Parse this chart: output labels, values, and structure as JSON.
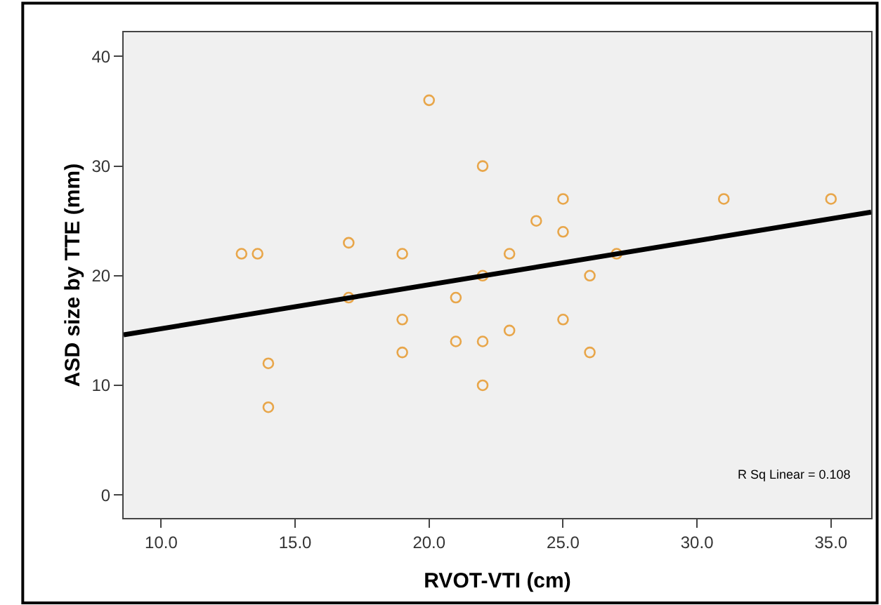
{
  "chart_data": {
    "type": "scatter",
    "xlabel": "RVOT-VTI (cm)",
    "ylabel": "ASD size by TTE (mm)",
    "xlim": [
      8.6,
      36.5
    ],
    "ylim": [
      -2.1,
      42.2
    ],
    "xticks": [
      {
        "value": 10,
        "label": "10.0"
      },
      {
        "value": 15,
        "label": "15.0"
      },
      {
        "value": 20,
        "label": "20.0"
      },
      {
        "value": 25,
        "label": "25.0"
      },
      {
        "value": 30,
        "label": "30.0"
      },
      {
        "value": 35,
        "label": "35.0"
      }
    ],
    "yticks": [
      0,
      10,
      20,
      30,
      40
    ],
    "marker": "circle",
    "series": [
      {
        "color": "#e8a64a",
        "x": [
          13,
          13.6,
          14,
          14,
          17,
          17,
          19,
          19,
          19,
          20,
          21,
          21,
          22,
          22,
          22,
          22,
          23,
          23,
          24,
          25,
          25,
          25,
          26,
          26,
          27,
          31,
          35
        ],
        "values": [
          22,
          22,
          12,
          8,
          23,
          18,
          22,
          16,
          13,
          36,
          18,
          14,
          30,
          20,
          14,
          10,
          22,
          15,
          25,
          27,
          24,
          16,
          20,
          13,
          22,
          27,
          27
        ]
      },
      {
        "type": "line",
        "color": "#000000",
        "marker": "none",
        "line_style": "solid",
        "x": [
          8.6,
          36.5
        ],
        "values": [
          14.6,
          25.8
        ]
      }
    ],
    "annotations": [
      "R Sq Linear = 0.108"
    ]
  }
}
